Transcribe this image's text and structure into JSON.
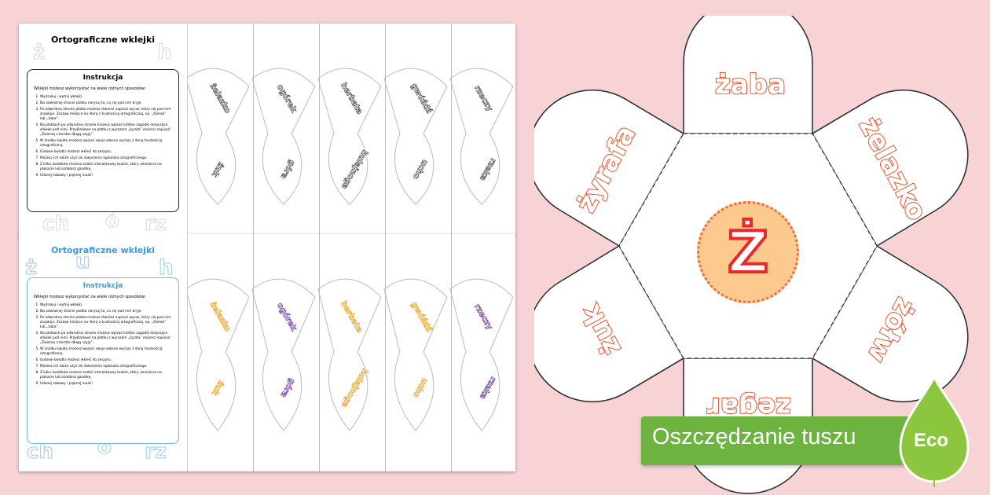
{
  "sheets": [
    {
      "title": "Ortograficzne wklejki",
      "box_title": "Instrukcja",
      "lead": "Wklejki możesz wykorzystać na wiele różnych sposobów:",
      "steps": [
        "Wydrukuj i wytnij wklejki.",
        "Na odwrotnej stronie płatka narysuj to, co się pod nim kryje.",
        "Po odwrotnej stronie płatka możesz również napisać wyraz, który się pod nim znajduje. Zostaw miejsce na literę z trudnością ortograficzną, np. „ślimak” lub „żaba”.",
        "Na płatkach po odwrotnej stronie możesz wpisać krótkie zagadki dotyczące słówek pod nimi. Przykładowo na płatku z wyrazem „żyrafa” możesz napisać: „Zwierzę z bardzo długą szyją”.",
        "W środku kwiatu możesz wpisać swoje własne wyrazy z daną trudnością ortograficzną.",
        "Gotowe kwiatki możesz wkleić do zeszytu.",
        "Możesz ich także użyć do stworzenia lapbooka ortograficznego.",
        "Z kilku kwiatków możesz zrobić interaktywny bukiet, który umieścisz na plakacie lub ozdobisz gazetkę.",
        "Udanej zabawy i pięknej nauki!"
      ],
      "ghost_letters": [
        "ż",
        "h",
        "ch",
        "ó",
        "rz"
      ],
      "words": [
        [
          "żelazko",
          "żuk"
        ],
        [
          "ogórek",
          "góra"
        ],
        [
          "herbata",
          "hulajnoga"
        ],
        [
          "gwóźdź",
          "ucho"
        ],
        [
          "rzeczy",
          "rzeka"
        ]
      ]
    },
    {
      "title": "Ortograficzne wklejki",
      "box_title": "Instrukcja",
      "lead": "Wklejki możesz wykorzystać na wiele różnych sposobów:",
      "steps": [
        "Wydrukuj i wytnij wklejki.",
        "Na odwrotnej stronie płatka narysuj to, co się pod nim kryje.",
        "Po odwrotnej stronie płatka możesz również napisać wyraz, który się pod nim znajduje. Zostaw miejsce na literę z trudnością ortograficzną, np. „ślimak” lub „żaba”.",
        "Na płatkach po odwrotnej stronie możesz wpisać krótkie zagadki dotyczące słówek pod nimi. Przykładowo na płatku z wyrazem „żyrafa” możesz napisać: „Zwierzę z bardzo długą szyją”.",
        "W środku kwiatu możesz wpisać swoje własne wyrazy z daną trudnością ortograficzną.",
        "Gotowe kwiatki możesz wkleić do zeszytu.",
        "Możesz ich także użyć do stworzenia lapbooka ortograficznego.",
        "Z kilku kwiatków możesz zrobić interaktywny bukiet, który umieścisz na plakacie lub ozdobisz gazetkę.",
        "Udanej zabawy i pięknej nauki!"
      ],
      "ghost_letters": [
        "ż",
        "u",
        "h",
        "ch",
        "ó",
        "rz"
      ],
      "words": [
        [
          "żelazko",
          "żuk"
        ],
        [
          "ogórek",
          "góra"
        ],
        [
          "herbata",
          "hulajnoga"
        ],
        [
          "gwóźdź",
          "ucho"
        ],
        [
          "rzeczy",
          "rzeka"
        ]
      ],
      "word_colors": [
        "#f0a020",
        "#7040a0",
        "#f0a020",
        "#f0a020",
        "#7040a0"
      ]
    }
  ],
  "flower": {
    "center_letter": "Ż",
    "petals": [
      "żaba",
      "żelazko",
      "żółw",
      "zegar",
      "żuk",
      "żyrafa"
    ]
  },
  "eco": {
    "text": "Oszczędzanie tuszu",
    "badge": "Eco"
  },
  "colors": {
    "background": "#f7d3d6",
    "petal_text_stroke": "#e8502b",
    "eco_green": "#6cb33f"
  }
}
